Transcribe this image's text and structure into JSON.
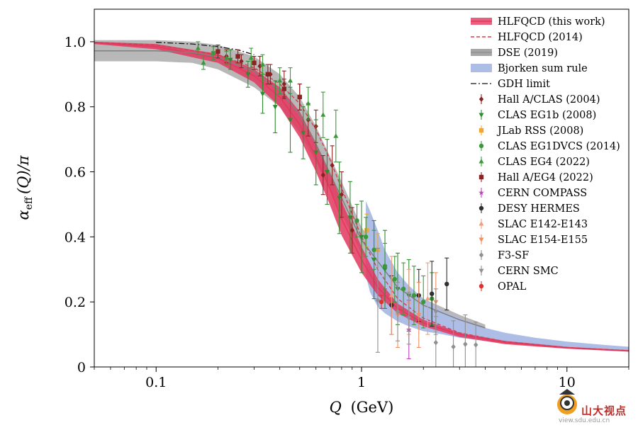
{
  "chart_data": {
    "type": "scatter",
    "xlabel_main": "Q",
    "xlabel_unit": "(GeV)",
    "ylabel_main": "α",
    "ylabel_sub": "eff",
    "ylabel_rest": "(Q)/π",
    "xscale": "log",
    "xlim": [
      0.05,
      20
    ],
    "ylim": [
      0,
      1.1
    ],
    "xticks": [
      {
        "v": 0.1,
        "label": "0.1"
      },
      {
        "v": 1,
        "label": "1"
      },
      {
        "v": 10,
        "label": "10"
      }
    ],
    "yticks": [
      {
        "v": 0,
        "label": "0"
      },
      {
        "v": 0.2,
        "label": "0.2"
      },
      {
        "v": 0.4,
        "label": "0.4"
      },
      {
        "v": 0.6,
        "label": "0.6"
      },
      {
        "v": 0.8,
        "label": "0.8"
      },
      {
        "v": 1.0,
        "label": "1.0"
      }
    ],
    "legend_position": "top-right",
    "bands": [
      {
        "name": "DSE (2019)",
        "color": "#a0a0a0",
        "opacity": 0.75,
        "x": [
          0.05,
          0.1,
          0.15,
          0.2,
          0.3,
          0.4,
          0.5,
          0.6,
          0.8,
          1.0,
          1.5,
          2.0,
          3.0,
          4.0
        ],
        "lo": [
          0.94,
          0.94,
          0.935,
          0.915,
          0.86,
          0.8,
          0.72,
          0.63,
          0.47,
          0.35,
          0.22,
          0.17,
          0.13,
          0.11
        ],
        "hi": [
          1.005,
          1.005,
          1.0,
          0.99,
          0.955,
          0.9,
          0.83,
          0.74,
          0.57,
          0.43,
          0.27,
          0.21,
          0.16,
          0.13
        ]
      },
      {
        "name": "Bjorken sum rule",
        "color": "#aebde6",
        "opacity": 1.0,
        "x": [
          1.05,
          1.1,
          1.2,
          1.3,
          1.5,
          1.7,
          2.0,
          2.5,
          3.0,
          4.0,
          5.0,
          7.0,
          10.0,
          15.0,
          20.0
        ],
        "lo": [
          0.28,
          0.23,
          0.185,
          0.165,
          0.14,
          0.125,
          0.11,
          0.1,
          0.09,
          0.08,
          0.075,
          0.068,
          0.062,
          0.056,
          0.052
        ],
        "hi": [
          0.51,
          0.48,
          0.42,
          0.36,
          0.29,
          0.25,
          0.21,
          0.17,
          0.15,
          0.12,
          0.105,
          0.09,
          0.078,
          0.068,
          0.062
        ]
      },
      {
        "name": "HLFQCD (this work)",
        "color": "#e3375e",
        "opacity": 0.85,
        "x": [
          0.05,
          0.1,
          0.2,
          0.3,
          0.4,
          0.5,
          0.6,
          0.7,
          0.8,
          1.0,
          1.2,
          1.5,
          2.0,
          3.0,
          5.0,
          10.0,
          20.0
        ],
        "lo": [
          0.993,
          0.977,
          0.935,
          0.875,
          0.8,
          0.705,
          0.6,
          0.5,
          0.405,
          0.29,
          0.22,
          0.165,
          0.125,
          0.092,
          0.07,
          0.056,
          0.047
        ],
        "hi": [
          1.0,
          0.993,
          0.963,
          0.915,
          0.86,
          0.785,
          0.69,
          0.6,
          0.51,
          0.37,
          0.27,
          0.195,
          0.145,
          0.105,
          0.08,
          0.062,
          0.052
        ]
      }
    ],
    "lines": [
      {
        "name": "HLFQCD (this work)",
        "color": "#e3375e",
        "dash": "",
        "width": 1.5,
        "x": [
          0.05,
          0.1,
          0.2,
          0.3,
          0.4,
          0.5,
          0.6,
          0.7,
          0.8,
          1.0,
          1.2,
          1.5,
          2.0,
          3.0,
          5.0,
          10.0,
          20.0
        ],
        "y": [
          0.997,
          0.985,
          0.95,
          0.895,
          0.83,
          0.745,
          0.645,
          0.55,
          0.455,
          0.33,
          0.245,
          0.18,
          0.135,
          0.1,
          0.075,
          0.059,
          0.049
        ]
      },
      {
        "name": "HLFQCD (2014)",
        "color": "#d04050",
        "dash": "5,3",
        "width": 1.4,
        "x": [
          0.05,
          0.1,
          0.2,
          0.3,
          0.4,
          0.5,
          0.6,
          0.7,
          0.8,
          1.0,
          1.2,
          1.5,
          2.0,
          3.0,
          5.0,
          10.0,
          20.0
        ],
        "y": [
          0.998,
          0.99,
          0.96,
          0.92,
          0.87,
          0.81,
          0.73,
          0.64,
          0.55,
          0.4,
          0.3,
          0.21,
          0.15,
          0.105,
          0.078,
          0.06,
          0.05
        ]
      },
      {
        "name": "DSE (2019)",
        "color": "#808080",
        "dash": "",
        "width": 1.5,
        "x": [
          0.05,
          0.1,
          0.15,
          0.2,
          0.3,
          0.4,
          0.5,
          0.6,
          0.8,
          1.0,
          1.5,
          2.0,
          3.0,
          4.0
        ],
        "y": [
          0.972,
          0.972,
          0.967,
          0.953,
          0.908,
          0.85,
          0.775,
          0.685,
          0.52,
          0.39,
          0.245,
          0.19,
          0.145,
          0.12
        ]
      },
      {
        "name": "GDH limit",
        "color": "#111111",
        "dash": "8,3,2,3",
        "width": 1.3,
        "x": [
          0.1,
          0.15,
          0.2,
          0.25,
          0.3
        ],
        "y": [
          0.998,
          0.993,
          0.985,
          0.975,
          0.96
        ]
      }
    ],
    "series": [
      {
        "name": "Hall A/CLAS (2004)",
        "color": "#8b2323",
        "marker": "diamond",
        "points": [
          [
            0.22,
            0.955,
            0.02
          ],
          [
            0.26,
            0.94,
            0.02
          ],
          [
            0.32,
            0.925,
            0.03
          ],
          [
            0.36,
            0.9,
            0.03
          ],
          [
            0.42,
            0.87,
            0.04
          ],
          [
            0.5,
            0.83,
            0.04
          ],
          [
            0.55,
            0.76,
            0.05
          ],
          [
            0.6,
            0.74,
            0.05
          ],
          [
            0.65,
            0.59,
            0.06
          ],
          [
            0.72,
            0.62,
            0.06
          ],
          [
            0.8,
            0.53,
            0.07
          ],
          [
            0.9,
            0.42,
            0.07
          ]
        ]
      },
      {
        "name": "CLAS EG1b (2008)",
        "color": "#2e8b2e",
        "marker": "tri-down",
        "points": [
          [
            0.19,
            0.965,
            0.02
          ],
          [
            0.23,
            0.945,
            0.03
          ],
          [
            0.28,
            0.9,
            0.04
          ],
          [
            0.33,
            0.84,
            0.06
          ],
          [
            0.38,
            0.8,
            0.08
          ],
          [
            0.45,
            0.76,
            0.1
          ],
          [
            0.52,
            0.72,
            0.08
          ],
          [
            0.6,
            0.66,
            0.1
          ],
          [
            0.68,
            0.6,
            0.1
          ],
          [
            0.78,
            0.52,
            0.11
          ],
          [
            0.88,
            0.46,
            0.11
          ],
          [
            1.0,
            0.4,
            0.11
          ],
          [
            1.15,
            0.33,
            0.12
          ],
          [
            1.3,
            0.3,
            0.12
          ],
          [
            1.5,
            0.24,
            0.11
          ],
          [
            1.7,
            0.22,
            0.11
          ]
        ]
      },
      {
        "name": "JLab RSS (2008)",
        "color": "#f0a830",
        "marker": "square",
        "points": [
          [
            1.06,
            0.42,
            0.05
          ],
          [
            1.2,
            0.36,
            0.05
          ]
        ]
      },
      {
        "name": "CLAS EG1DVCS (2014)",
        "color": "#3a9a3a",
        "marker": "circle",
        "points": [
          [
            0.95,
            0.45,
            0.05
          ],
          [
            1.05,
            0.4,
            0.06
          ],
          [
            1.15,
            0.36,
            0.06
          ],
          [
            1.3,
            0.31,
            0.07
          ],
          [
            1.45,
            0.27,
            0.07
          ],
          [
            1.6,
            0.24,
            0.08
          ],
          [
            1.8,
            0.22,
            0.09
          ],
          [
            2.0,
            0.2,
            0.08
          ],
          [
            2.2,
            0.21,
            0.08
          ]
        ]
      },
      {
        "name": "CLAS EG4 (2022)",
        "color": "#3a9a3a",
        "marker": "tri-up",
        "points": [
          [
            0.16,
            0.98,
            0.02
          ],
          [
            0.17,
            0.935,
            0.02
          ],
          [
            0.19,
            0.965,
            0.02
          ],
          [
            0.22,
            0.95,
            0.02
          ],
          [
            0.25,
            0.955,
            0.02
          ],
          [
            0.29,
            0.95,
            0.03
          ],
          [
            0.33,
            0.93,
            0.03
          ],
          [
            0.4,
            0.88,
            0.04
          ],
          [
            0.45,
            0.88,
            0.04
          ],
          [
            0.55,
            0.81,
            0.05
          ],
          [
            0.65,
            0.775,
            0.07
          ],
          [
            0.75,
            0.71,
            0.08
          ]
        ]
      },
      {
        "name": "Hall A/EG4 (2022)",
        "color": "#8b2323",
        "marker": "square",
        "points": [
          [
            0.2,
            0.97,
            0.02
          ],
          [
            0.25,
            0.955,
            0.02
          ],
          [
            0.3,
            0.935,
            0.02
          ],
          [
            0.35,
            0.9,
            0.03
          ],
          [
            0.42,
            0.855,
            0.03
          ],
          [
            0.5,
            0.83,
            0.04
          ]
        ]
      },
      {
        "name": "CERN COMPASS",
        "color": "#c040c0",
        "marker": "star",
        "points": [
          [
            1.7,
            0.115,
            0.09
          ]
        ]
      },
      {
        "name": "DESY HERMES",
        "color": "#303030",
        "marker": "circle",
        "points": [
          [
            1.4,
            0.19,
            0.09
          ],
          [
            1.9,
            0.22,
            0.08
          ],
          [
            2.2,
            0.225,
            0.1
          ],
          [
            2.6,
            0.255,
            0.08
          ]
        ]
      },
      {
        "name": "SLAC E142-E143",
        "color": "#f0a080",
        "marker": "tri-up",
        "points": [
          [
            1.4,
            0.22,
            0.12
          ],
          [
            1.7,
            0.2,
            0.1
          ],
          [
            2.1,
            0.21,
            0.11
          ]
        ]
      },
      {
        "name": "SLAC E154-E155",
        "color": "#f09060",
        "marker": "tri-down",
        "points": [
          [
            1.5,
            0.16,
            0.1
          ],
          [
            1.9,
            0.16,
            0.1
          ],
          [
            2.3,
            0.2,
            0.09
          ]
        ]
      },
      {
        "name": "F3-SF",
        "color": "#909090",
        "marker": "diamond",
        "points": [
          [
            1.2,
            0.205,
            0.16
          ],
          [
            1.5,
            0.17,
            0.09
          ],
          [
            2.3,
            0.075,
            0.08
          ],
          [
            2.8,
            0.062,
            0.08
          ],
          [
            3.2,
            0.07,
            0.09
          ],
          [
            3.6,
            0.068,
            0.07
          ]
        ]
      },
      {
        "name": "CERN SMC",
        "color": "#909090",
        "marker": "tri-down",
        "points": [
          [
            1.7,
            0.15,
            0.08
          ],
          [
            2.3,
            0.17,
            0.07
          ]
        ]
      },
      {
        "name": "OPAL",
        "color": "#e03030",
        "marker": "circle",
        "points": [
          [
            1.25,
            0.2,
            0.02
          ]
        ]
      }
    ],
    "legend": [
      {
        "label": "HLFQCD (this work)",
        "kind": "band-line",
        "color": "#e3375e"
      },
      {
        "label": "HLFQCD (2014)",
        "kind": "dash",
        "color": "#d04050"
      },
      {
        "label": "DSE (2019)",
        "kind": "band-line",
        "color": "#909090"
      },
      {
        "label": "Bjorken sum rule",
        "kind": "band",
        "color": "#aebde6"
      },
      {
        "label": "GDH limit",
        "kind": "dashdot",
        "color": "#111111"
      },
      {
        "label": "Hall A/CLAS (2004)",
        "kind": "marker",
        "marker": "diamond",
        "color": "#8b2323"
      },
      {
        "label": "CLAS EG1b (2008)",
        "kind": "marker",
        "marker": "tri-down",
        "color": "#2e8b2e"
      },
      {
        "label": "JLab RSS (2008)",
        "kind": "marker",
        "marker": "square",
        "color": "#f0a830"
      },
      {
        "label": "CLAS EG1DVCS (2014)",
        "kind": "marker",
        "marker": "circle",
        "color": "#3a9a3a"
      },
      {
        "label": "CLAS EG4 (2022)",
        "kind": "marker",
        "marker": "tri-up",
        "color": "#3a9a3a"
      },
      {
        "label": "Hall A/EG4 (2022)",
        "kind": "marker",
        "marker": "square",
        "color": "#8b2323"
      },
      {
        "label": "CERN COMPASS",
        "kind": "marker",
        "marker": "star",
        "color": "#c040c0"
      },
      {
        "label": "DESY HERMES",
        "kind": "marker",
        "marker": "circle",
        "color": "#303030"
      },
      {
        "label": "SLAC E142-E143",
        "kind": "marker",
        "marker": "tri-up",
        "color": "#f0a080"
      },
      {
        "label": "SLAC E154-E155",
        "kind": "marker",
        "marker": "tri-down",
        "color": "#f09060"
      },
      {
        "label": "F3-SF",
        "kind": "marker",
        "marker": "diamond",
        "color": "#909090"
      },
      {
        "label": "CERN SMC",
        "kind": "marker",
        "marker": "tri-down",
        "color": "#909090"
      },
      {
        "label": "OPAL",
        "kind": "marker",
        "marker": "circle",
        "color": "#e03030"
      }
    ]
  },
  "watermark": {
    "title": "山大视点",
    "url": "view.sdu.edu.cn"
  }
}
